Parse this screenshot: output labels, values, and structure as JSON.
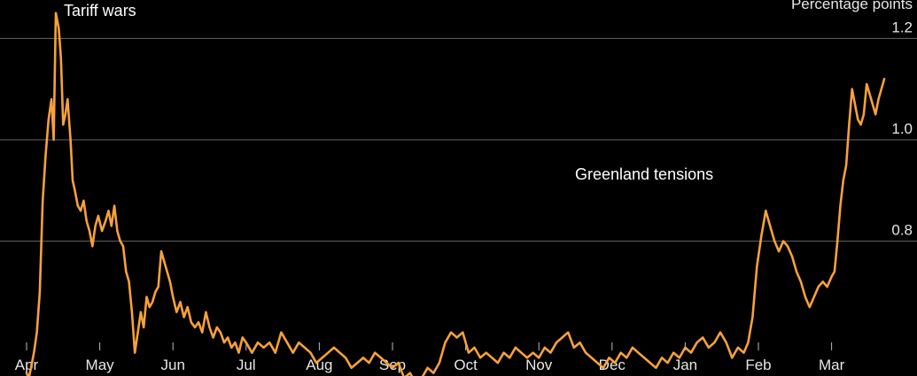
{
  "chart_data": {
    "type": "line",
    "title": "",
    "xlabel": "",
    "ylabel": "",
    "unit_label": "Percentage points",
    "x_tick_labels": [
      "Apr",
      "May",
      "Jun",
      "Jul",
      "Aug",
      "Sep",
      "Oct",
      "Nov",
      "Dec",
      "Jan",
      "Feb",
      "Mar"
    ],
    "y_ticks": [
      0.8,
      1.0,
      1.2
    ],
    "y_tick_labels": [
      "0.8",
      "1.0",
      "1.2"
    ],
    "ylim": [
      0.5,
      1.25
    ],
    "grid": true,
    "line_color": "#f7a13a",
    "annotations": [
      {
        "text": "Tariff wars"
      },
      {
        "text": "Greenland tensions"
      }
    ],
    "series": [
      {
        "x_month_index": [
          0.0,
          0.03,
          0.06,
          0.1,
          0.14,
          0.18,
          0.22,
          0.26,
          0.3,
          0.34,
          0.37,
          0.4,
          0.44,
          0.47,
          0.5,
          0.53,
          0.56,
          0.6,
          0.63,
          0.66,
          0.7,
          0.74,
          0.78,
          0.82,
          0.86,
          0.9,
          0.94,
          0.98,
          1.03,
          1.08,
          1.12,
          1.16,
          1.2,
          1.24,
          1.28,
          1.32,
          1.36,
          1.4,
          1.44,
          1.48,
          1.52,
          1.56,
          1.6,
          1.64,
          1.68,
          1.72,
          1.76,
          1.8,
          1.84,
          1.88,
          1.92,
          1.96,
          2.0,
          2.05,
          2.1,
          2.15,
          2.2,
          2.25,
          2.3,
          2.35,
          2.4,
          2.45,
          2.5,
          2.55,
          2.6,
          2.65,
          2.7,
          2.75,
          2.8,
          2.85,
          2.9,
          2.95,
          3.0,
          3.08,
          3.16,
          3.24,
          3.32,
          3.4,
          3.48,
          3.56,
          3.64,
          3.72,
          3.8,
          3.88,
          3.96,
          4.04,
          4.12,
          4.2,
          4.28,
          4.36,
          4.44,
          4.52,
          4.6,
          4.68,
          4.76,
          4.84,
          4.92,
          5.0,
          5.08,
          5.16,
          5.24,
          5.32,
          5.4,
          5.48,
          5.56,
          5.64,
          5.72,
          5.8,
          5.88,
          5.96,
          6.04,
          6.12,
          6.2,
          6.28,
          6.36,
          6.44,
          6.52,
          6.6,
          6.68,
          6.76,
          6.84,
          6.92,
          7.0,
          7.08,
          7.16,
          7.24,
          7.32,
          7.4,
          7.48,
          7.56,
          7.64,
          7.72,
          7.8,
          7.88,
          7.96,
          8.04,
          8.12,
          8.2,
          8.28,
          8.36,
          8.44,
          8.52,
          8.6,
          8.68,
          8.76,
          8.84,
          8.92,
          9.0,
          9.08,
          9.16,
          9.24,
          9.32,
          9.4,
          9.48,
          9.56,
          9.64,
          9.72,
          9.8,
          9.86,
          9.92,
          9.98,
          10.04,
          10.1,
          10.16,
          10.22,
          10.28,
          10.34,
          10.4,
          10.46,
          10.52,
          10.58,
          10.64,
          10.7,
          10.76,
          10.82,
          10.88,
          10.94,
          11.0,
          11.04,
          11.08,
          11.12,
          11.16,
          11.2,
          11.24,
          11.28,
          11.32,
          11.36,
          11.4,
          11.44,
          11.48,
          11.52,
          11.56,
          11.6,
          11.64,
          11.68,
          11.72
        ],
        "values": [
          0.54,
          0.53,
          0.55,
          0.58,
          0.62,
          0.7,
          0.88,
          0.97,
          1.04,
          1.08,
          1.0,
          1.25,
          1.22,
          1.16,
          1.03,
          1.05,
          1.08,
          1.0,
          0.92,
          0.9,
          0.87,
          0.86,
          0.88,
          0.84,
          0.82,
          0.79,
          0.83,
          0.85,
          0.82,
          0.84,
          0.86,
          0.83,
          0.87,
          0.82,
          0.8,
          0.79,
          0.74,
          0.72,
          0.66,
          0.58,
          0.62,
          0.66,
          0.63,
          0.69,
          0.67,
          0.68,
          0.7,
          0.71,
          0.78,
          0.76,
          0.74,
          0.72,
          0.69,
          0.66,
          0.68,
          0.65,
          0.67,
          0.64,
          0.63,
          0.64,
          0.62,
          0.66,
          0.63,
          0.61,
          0.63,
          0.62,
          0.6,
          0.61,
          0.59,
          0.6,
          0.58,
          0.61,
          0.6,
          0.58,
          0.6,
          0.59,
          0.6,
          0.58,
          0.62,
          0.6,
          0.58,
          0.6,
          0.59,
          0.58,
          0.56,
          0.57,
          0.58,
          0.59,
          0.58,
          0.57,
          0.55,
          0.56,
          0.57,
          0.56,
          0.58,
          0.57,
          0.56,
          0.55,
          0.56,
          0.53,
          0.54,
          0.52,
          0.53,
          0.55,
          0.54,
          0.56,
          0.6,
          0.62,
          0.61,
          0.62,
          0.58,
          0.59,
          0.57,
          0.58,
          0.57,
          0.56,
          0.58,
          0.57,
          0.59,
          0.58,
          0.57,
          0.58,
          0.57,
          0.59,
          0.58,
          0.6,
          0.61,
          0.62,
          0.59,
          0.6,
          0.58,
          0.57,
          0.56,
          0.55,
          0.57,
          0.56,
          0.58,
          0.57,
          0.59,
          0.58,
          0.57,
          0.56,
          0.55,
          0.57,
          0.56,
          0.58,
          0.57,
          0.59,
          0.58,
          0.6,
          0.61,
          0.59,
          0.6,
          0.62,
          0.6,
          0.57,
          0.59,
          0.58,
          0.6,
          0.65,
          0.75,
          0.81,
          0.86,
          0.83,
          0.8,
          0.78,
          0.8,
          0.79,
          0.77,
          0.74,
          0.72,
          0.69,
          0.67,
          0.69,
          0.71,
          0.72,
          0.71,
          0.73,
          0.74,
          0.8,
          0.87,
          0.92,
          0.95,
          1.03,
          1.1,
          1.07,
          1.04,
          1.03,
          1.05,
          1.11,
          1.09,
          1.07,
          1.05,
          1.08,
          1.1,
          1.12,
          1.15
        ]
      }
    ]
  }
}
